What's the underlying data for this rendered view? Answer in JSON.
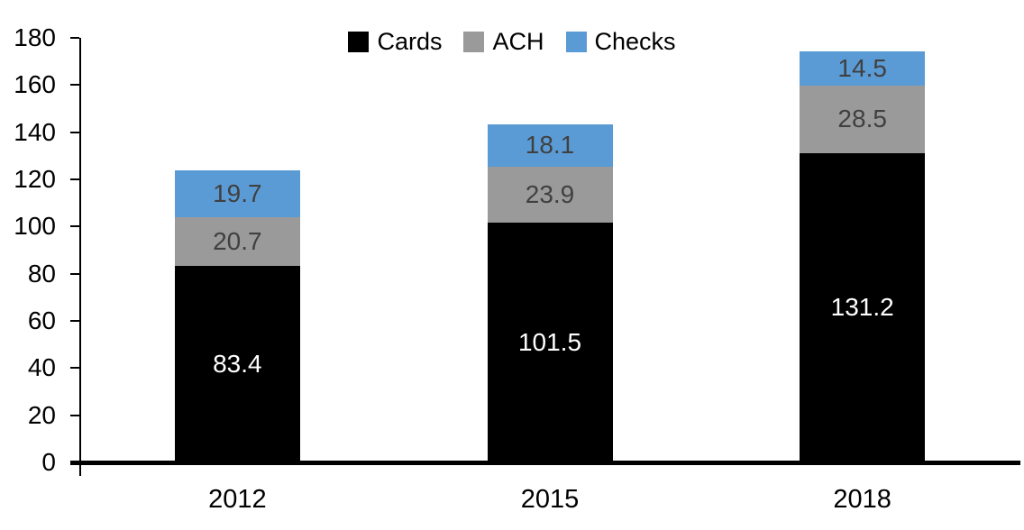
{
  "chart_data": {
    "type": "bar",
    "stacked": true,
    "title": "",
    "xlabel": "",
    "ylabel": "",
    "categories": [
      "2012",
      "2015",
      "2018"
    ],
    "series": [
      {
        "name": "Cards",
        "color": "#000000",
        "label_color": "#ffffff",
        "values": [
          83.4,
          101.5,
          131.2
        ]
      },
      {
        "name": "ACH",
        "color": "#9A9A9A",
        "label_color": "#404040",
        "values": [
          20.7,
          23.9,
          28.5
        ]
      },
      {
        "name": "Checks",
        "color": "#5B9BD5",
        "label_color": "#404040",
        "values": [
          19.7,
          18.1,
          14.5
        ]
      }
    ],
    "ylim": [
      0,
      180
    ],
    "yticks": [
      0,
      20,
      40,
      60,
      80,
      100,
      120,
      140,
      160,
      180
    ],
    "legend_position": "top-center",
    "grid": false,
    "axis_color": "#000000"
  }
}
